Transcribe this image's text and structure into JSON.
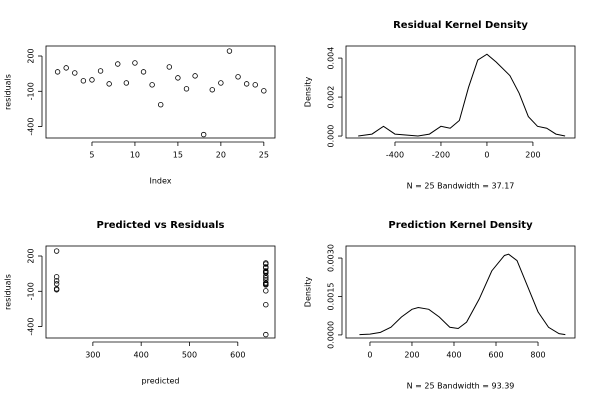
{
  "chart_data": [
    {
      "type": "scatter",
      "color": "#000000",
      "xlabel": "Index",
      "ylabel": "residuals",
      "x": [
        1,
        2,
        3,
        4,
        5,
        6,
        7,
        8,
        9,
        10,
        11,
        12,
        13,
        14,
        15,
        16,
        17,
        18,
        19,
        20,
        21,
        22,
        23,
        24,
        25
      ],
      "values": [
        65,
        99,
        56,
        -11,
        -3,
        73,
        -37,
        132,
        -29,
        141,
        65,
        -45,
        -214,
        107,
        14,
        -79,
        31,
        -468,
        -87,
        -29,
        242,
        23,
        -37,
        -45,
        -96
      ],
      "xlim": [
        -0.35,
        26.3
      ],
      "ylim": [
        -497,
        285
      ],
      "xticks": [
        5,
        10,
        15,
        20,
        25
      ],
      "yticks": [
        -400,
        -100,
        200
      ]
    },
    {
      "type": "line",
      "color": "#000000",
      "title": "Residual Kernel Density",
      "subtitle": "N = 25   Bandwidth = 37.17",
      "ylabel": "Density",
      "x": [
        -560,
        -500,
        -450,
        -400,
        -300,
        -250,
        -200,
        -160,
        -120,
        -80,
        -40,
        0,
        40,
        100,
        140,
        180,
        220,
        260,
        300,
        340
      ],
      "values": [
        0,
        0.0001,
        0.0005,
        0.0001,
        0,
        0.0001,
        0.0005,
        0.0004,
        0.0008,
        0.0025,
        0.0039,
        0.0042,
        0.0038,
        0.0031,
        0.0022,
        0.001,
        0.0005,
        0.0004,
        0.0001,
        0
      ],
      "xlim": [
        -613,
        383
      ],
      "ylim": [
        -0.0001,
        0.00462
      ],
      "xticks": [
        -400,
        -200,
        0,
        200
      ],
      "yticks": [
        {
          "value": 0,
          "label": "0.000"
        },
        {
          "value": 0.002,
          "label": "0.002"
        },
        {
          "value": 0.004,
          "label": "0.004"
        }
      ]
    },
    {
      "type": "scatter",
      "color": "#000000",
      "title": "Predicted vs Residuals",
      "xlabel": "predicted",
      "ylabel": "residuals",
      "x": [
        225,
        225,
        225,
        225,
        225,
        225,
        658,
        658,
        658,
        658,
        658,
        658,
        658,
        658,
        658,
        658,
        658,
        658,
        658,
        658,
        658,
        658,
        658,
        658,
        658
      ],
      "values": [
        242,
        23,
        -11,
        -37,
        -79,
        -87,
        65,
        99,
        56,
        -3,
        73,
        132,
        -29,
        141,
        65,
        -45,
        -214,
        107,
        14,
        31,
        -468,
        -29,
        -37,
        -45,
        -96
      ],
      "xlim": [
        203,
        677
      ],
      "ylim": [
        -497,
        285
      ],
      "xticks": [
        300,
        400,
        500,
        600
      ],
      "yticks": [
        -400,
        -100,
        200
      ]
    },
    {
      "type": "line",
      "color": "#000000",
      "title": "Prediction Kernel Density",
      "subtitle": "N = 25   Bandwidth = 93.39",
      "ylabel": "Density",
      "x": [
        -50,
        0,
        50,
        100,
        150,
        200,
        230,
        280,
        330,
        380,
        420,
        460,
        520,
        580,
        640,
        660,
        700,
        750,
        800,
        850,
        900,
        930
      ],
      "values": [
        1e-05,
        3e-05,
        0.0001,
        0.0003,
        0.0007,
        0.001,
        0.00107,
        0.001,
        0.0007,
        0.0003,
        0.00025,
        0.0005,
        0.0014,
        0.0025,
        0.0031,
        0.00315,
        0.0029,
        0.0019,
        0.0009,
        0.0003,
        5e-05,
        1e-05
      ],
      "xlim": [
        -114,
        976
      ],
      "ylim": [
        -0.00012,
        0.00347
      ],
      "xticks": [
        0,
        200,
        400,
        600,
        800
      ],
      "yticks": [
        {
          "value": 0,
          "label": "0.0000"
        },
        {
          "value": 0.0015,
          "label": "0.0015"
        },
        {
          "value": 0.003,
          "label": "0.0030"
        }
      ]
    }
  ]
}
